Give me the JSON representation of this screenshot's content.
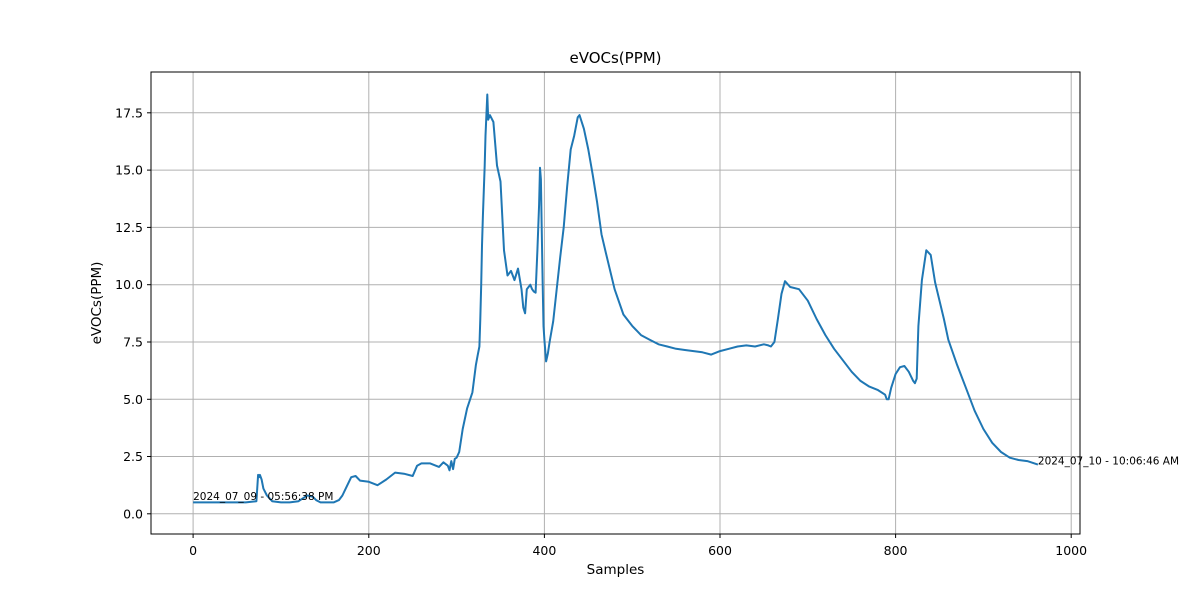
{
  "chart_data": {
    "type": "line",
    "title": "eVOCs(PPM)",
    "xlabel": "Samples",
    "ylabel": "eVOCs(PPM)",
    "xlim": [
      -48,
      1010
    ],
    "ylim": [
      -0.88,
      19.28
    ],
    "grid": true,
    "line_color": "#1f77b4",
    "x_ticks": [
      0,
      200,
      400,
      600,
      800,
      1000
    ],
    "y_ticks": [
      0.0,
      2.5,
      5.0,
      7.5,
      10.0,
      12.5,
      15.0,
      17.5
    ],
    "x_tick_labels": [
      "0",
      "200",
      "400",
      "600",
      "800",
      "1000"
    ],
    "y_tick_labels": [
      "0.0",
      "2.5",
      "5.0",
      "7.5",
      "10.0",
      "12.5",
      "15.0",
      "17.5"
    ],
    "annotations": [
      {
        "text": "2024_07_09 - 05:56:38 PM",
        "x": 0,
        "y": 0.6
      },
      {
        "text": "2024_07_10 - 10:06:46 AM",
        "x": 962,
        "y": 2.15
      }
    ],
    "series": [
      {
        "x": [
          0,
          20,
          40,
          60,
          72,
          74,
          75,
          76,
          78,
          80,
          84,
          90,
          100,
          110,
          120,
          130,
          136,
          140,
          145,
          150,
          155,
          160,
          166,
          170,
          175,
          180,
          185,
          190,
          200,
          210,
          220,
          230,
          240,
          250,
          255,
          260,
          270,
          280,
          285,
          290,
          292,
          294,
          296,
          298,
          300,
          303,
          307,
          312,
          318,
          322,
          324,
          326,
          327,
          328,
          329,
          330,
          331,
          332,
          333,
          334,
          335,
          336,
          338,
          342,
          346,
          350,
          354,
          358,
          362,
          366,
          370,
          374,
          376,
          378,
          380,
          384,
          386,
          388,
          390,
          392,
          394,
          395,
          396,
          397,
          398,
          399,
          400,
          402,
          404,
          406,
          410,
          414,
          418,
          422,
          426,
          430,
          434,
          438,
          440,
          445,
          450,
          455,
          460,
          465,
          470,
          480,
          490,
          500,
          510,
          520,
          530,
          540,
          550,
          560,
          570,
          580,
          590,
          600,
          610,
          620,
          630,
          640,
          650,
          655,
          658,
          662,
          666,
          670,
          674,
          680,
          690,
          700,
          710,
          720,
          730,
          740,
          750,
          760,
          770,
          780,
          788,
          790,
          792,
          795,
          800,
          805,
          810,
          815,
          820,
          822,
          824,
          826,
          830,
          835,
          840,
          845,
          850,
          855,
          860,
          870,
          880,
          890,
          900,
          910,
          920,
          930,
          940,
          950,
          962
        ],
        "y": [
          0.5,
          0.5,
          0.5,
          0.5,
          0.55,
          1.7,
          1.6,
          1.7,
          1.5,
          1.1,
          0.8,
          0.55,
          0.5,
          0.5,
          0.55,
          0.8,
          0.75,
          0.6,
          0.5,
          0.5,
          0.5,
          0.5,
          0.6,
          0.8,
          1.2,
          1.6,
          1.65,
          1.45,
          1.4,
          1.25,
          1.5,
          1.8,
          1.75,
          1.65,
          2.1,
          2.2,
          2.2,
          2.05,
          2.25,
          2.1,
          1.9,
          2.3,
          1.95,
          2.4,
          2.45,
          2.7,
          3.7,
          4.6,
          5.3,
          6.5,
          6.9,
          7.3,
          8.5,
          10.0,
          11.7,
          13.0,
          14.1,
          15.2,
          16.5,
          17.4,
          18.3,
          17.2,
          17.4,
          17.1,
          15.2,
          14.5,
          11.5,
          10.4,
          10.6,
          10.2,
          10.7,
          9.8,
          9.0,
          8.75,
          9.8,
          10.0,
          9.8,
          9.7,
          9.65,
          11.5,
          13.5,
          15.1,
          14.6,
          12.5,
          10.2,
          8.2,
          7.6,
          6.65,
          7.0,
          7.5,
          8.4,
          9.8,
          11.2,
          12.5,
          14.3,
          15.9,
          16.5,
          17.3,
          17.4,
          16.8,
          15.9,
          14.8,
          13.6,
          12.2,
          11.4,
          9.8,
          8.7,
          8.2,
          7.8,
          7.6,
          7.4,
          7.3,
          7.2,
          7.15,
          7.1,
          7.05,
          6.95,
          7.1,
          7.2,
          7.3,
          7.35,
          7.3,
          7.4,
          7.35,
          7.3,
          7.5,
          8.5,
          9.6,
          10.15,
          9.9,
          9.8,
          9.3,
          8.5,
          7.8,
          7.2,
          6.7,
          6.2,
          5.8,
          5.55,
          5.4,
          5.2,
          5.0,
          5.0,
          5.5,
          6.1,
          6.4,
          6.45,
          6.2,
          5.8,
          5.7,
          5.9,
          8.2,
          10.2,
          11.5,
          11.3,
          10.1,
          9.3,
          8.5,
          7.6,
          6.5,
          5.5,
          4.5,
          3.7,
          3.1,
          2.7,
          2.45,
          2.35,
          2.3,
          2.15
        ]
      }
    ]
  }
}
